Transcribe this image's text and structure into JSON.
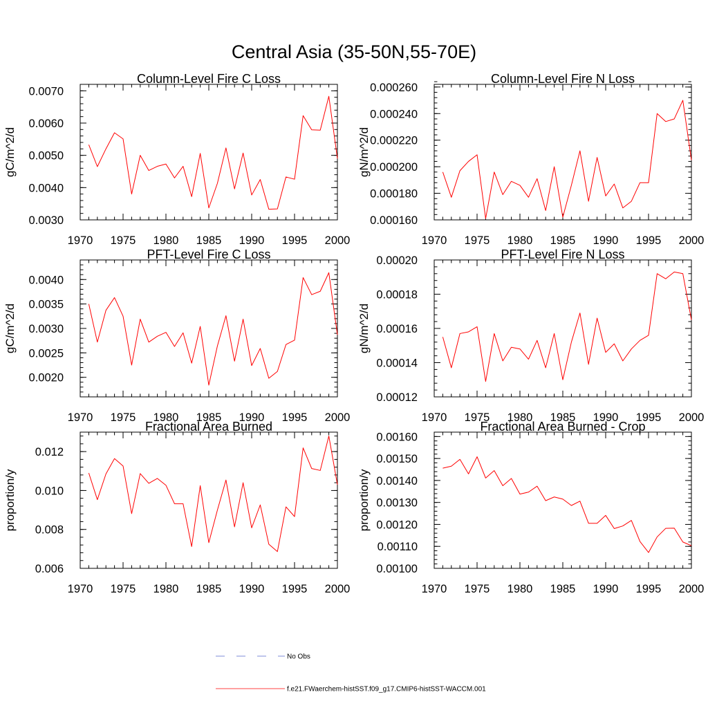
{
  "title": "Central Asia (35-50N,55-70E)",
  "legend": [
    {
      "label": "No Obs",
      "color": "#5566cc",
      "style": "dashed"
    },
    {
      "label": "f.e21.FWaerchem-histSST.f09_g17.CMIP6-histSST-WACCM.001",
      "color": "#ff0000",
      "style": "solid"
    }
  ],
  "chart_data": [
    {
      "type": "line",
      "title": "Column-Level Fire C Loss",
      "ylabel": "gC/m^2/d",
      "xlim": [
        1970,
        2000
      ],
      "ylim": [
        0.003,
        0.0072
      ],
      "x_ticks": [
        "1970",
        "1975",
        "1980",
        "1985",
        "1990",
        "1995",
        "2000"
      ],
      "y_ticks": [
        {
          "value": 0.003,
          "label": "0.0030"
        },
        {
          "value": 0.004,
          "label": "0.0040"
        },
        {
          "value": 0.005,
          "label": "0.0050"
        },
        {
          "value": 0.006,
          "label": "0.0060"
        },
        {
          "value": 0.007,
          "label": "0.0070"
        }
      ],
      "y_minor": 0.0002,
      "series": [
        {
          "color": "#ff0000",
          "x": [
            1971,
            1972,
            1973,
            1974,
            1975,
            1976,
            1977,
            1978,
            1979,
            1980,
            1981,
            1982,
            1983,
            1984,
            1985,
            1986,
            1987,
            1988,
            1989,
            1990,
            1991,
            1992,
            1993,
            1994,
            1995,
            1996,
            1997,
            1998,
            1999,
            2000
          ],
          "values": [
            0.00533,
            0.00465,
            0.0052,
            0.0057,
            0.00551,
            0.0038,
            0.005,
            0.00453,
            0.00466,
            0.00473,
            0.0043,
            0.00466,
            0.00372,
            0.00506,
            0.00337,
            0.00413,
            0.00523,
            0.00396,
            0.00507,
            0.00377,
            0.00425,
            0.00333,
            0.00334,
            0.00433,
            0.00426,
            0.00623,
            0.00579,
            0.00578,
            0.00683,
            0.0049
          ]
        }
      ]
    },
    {
      "type": "line",
      "title": "Column-Level Fire N Loss",
      "ylabel": "gN/m^2/d",
      "xlim": [
        1970,
        2000
      ],
      "ylim": [
        0.00016,
        0.000262
      ],
      "x_ticks": [
        "1970",
        "1975",
        "1980",
        "1985",
        "1990",
        "1995",
        "2000"
      ],
      "y_ticks": [
        {
          "value": 0.00016,
          "label": "0.000160"
        },
        {
          "value": 0.00018,
          "label": "0.000180"
        },
        {
          "value": 0.0002,
          "label": "0.000200"
        },
        {
          "value": 0.00022,
          "label": "0.000220"
        },
        {
          "value": 0.00024,
          "label": "0.000240"
        },
        {
          "value": 0.00026,
          "label": "0.000260"
        }
      ],
      "y_minor": 4e-06,
      "series": [
        {
          "color": "#ff0000",
          "x": [
            1971,
            1972,
            1973,
            1974,
            1975,
            1976,
            1977,
            1978,
            1979,
            1980,
            1981,
            1982,
            1983,
            1984,
            1985,
            1986,
            1987,
            1988,
            1989,
            1990,
            1991,
            1992,
            1993,
            1994,
            1995,
            1996,
            1997,
            1998,
            1999,
            2000
          ],
          "values": [
            0.000196,
            0.000177,
            0.000197,
            0.000204,
            0.000209,
            0.000161,
            0.000196,
            0.000179,
            0.000189,
            0.000186,
            0.000177,
            0.000191,
            0.000167,
            0.0002,
            0.000162,
            0.000186,
            0.000212,
            0.000174,
            0.000207,
            0.000178,
            0.000187,
            0.000169,
            0.000174,
            0.000188,
            0.000188,
            0.00024,
            0.000234,
            0.000236,
            0.00025,
            0.000205
          ]
        }
      ]
    },
    {
      "type": "line",
      "title": "PFT-Level Fire C Loss",
      "ylabel": "gC/m^2/d",
      "xlim": [
        1970,
        2000
      ],
      "ylim": [
        0.0016,
        0.0044
      ],
      "x_ticks": [
        "1970",
        "1975",
        "1980",
        "1985",
        "1990",
        "1995",
        "2000"
      ],
      "y_ticks": [
        {
          "value": 0.002,
          "label": "0.0020"
        },
        {
          "value": 0.0025,
          "label": "0.0025"
        },
        {
          "value": 0.003,
          "label": "0.0030"
        },
        {
          "value": 0.0035,
          "label": "0.0035"
        },
        {
          "value": 0.004,
          "label": "0.0040"
        }
      ],
      "y_minor": 0.0001,
      "series": [
        {
          "color": "#ff0000",
          "x": [
            1971,
            1972,
            1973,
            1974,
            1975,
            1976,
            1977,
            1978,
            1979,
            1980,
            1981,
            1982,
            1983,
            1984,
            1985,
            1986,
            1987,
            1988,
            1989,
            1990,
            1991,
            1992,
            1993,
            1994,
            1995,
            1996,
            1997,
            1998,
            1999,
            2000
          ],
          "values": [
            0.0035,
            0.00272,
            0.00337,
            0.00363,
            0.00325,
            0.00225,
            0.00319,
            0.00272,
            0.00284,
            0.00292,
            0.00263,
            0.00291,
            0.00229,
            0.00304,
            0.00184,
            0.00264,
            0.00326,
            0.00233,
            0.00319,
            0.00224,
            0.00259,
            0.00198,
            0.00212,
            0.00267,
            0.00276,
            0.00404,
            0.00369,
            0.00376,
            0.00414,
            0.00287
          ]
        }
      ]
    },
    {
      "type": "line",
      "title": "PFT-Level Fire N Loss",
      "ylabel": "gN/m^2/d",
      "xlim": [
        1970,
        2000
      ],
      "ylim": [
        0.00012,
        0.0002
      ],
      "x_ticks": [
        "1970",
        "1975",
        "1980",
        "1985",
        "1990",
        "1995",
        "2000"
      ],
      "y_ticks": [
        {
          "value": 0.00012,
          "label": "0.00012"
        },
        {
          "value": 0.00014,
          "label": "0.00014"
        },
        {
          "value": 0.00016,
          "label": "0.00016"
        },
        {
          "value": 0.00018,
          "label": "0.00018"
        },
        {
          "value": 0.0002,
          "label": "0.00020"
        }
      ],
      "y_minor": 4e-06,
      "series": [
        {
          "color": "#ff0000",
          "x": [
            1971,
            1972,
            1973,
            1974,
            1975,
            1976,
            1977,
            1978,
            1979,
            1980,
            1981,
            1982,
            1983,
            1984,
            1985,
            1986,
            1987,
            1988,
            1989,
            1990,
            1991,
            1992,
            1993,
            1994,
            1995,
            1996,
            1997,
            1998,
            1999,
            2000
          ],
          "values": [
            0.000155,
            0.000137,
            0.000157,
            0.000158,
            0.000161,
            0.000129,
            0.000157,
            0.000141,
            0.000149,
            0.000148,
            0.000142,
            0.000153,
            0.000137,
            0.000157,
            0.00013,
            0.000152,
            0.000169,
            0.000139,
            0.000166,
            0.000146,
            0.000151,
            0.000141,
            0.000148,
            0.000153,
            0.000156,
            0.000192,
            0.000189,
            0.000193,
            0.000192,
            0.000165
          ]
        }
      ]
    },
    {
      "type": "line",
      "title": "Fractional Area Burned",
      "ylabel": "proportion/y",
      "xlim": [
        1970,
        2000
      ],
      "ylim": [
        0.006,
        0.013
      ],
      "x_ticks": [
        "1970",
        "1975",
        "1980",
        "1985",
        "1990",
        "1995",
        "2000"
      ],
      "y_ticks": [
        {
          "value": 0.006,
          "label": "0.006"
        },
        {
          "value": 0.008,
          "label": "0.008"
        },
        {
          "value": 0.01,
          "label": "0.010"
        },
        {
          "value": 0.012,
          "label": "0.012"
        }
      ],
      "y_minor": 0.0004,
      "series": [
        {
          "color": "#ff0000",
          "x": [
            1971,
            1972,
            1973,
            1974,
            1975,
            1976,
            1977,
            1978,
            1979,
            1980,
            1981,
            1982,
            1983,
            1984,
            1985,
            1986,
            1987,
            1988,
            1989,
            1990,
            1991,
            1992,
            1993,
            1994,
            1995,
            1996,
            1997,
            1998,
            1999,
            2000
          ],
          "values": [
            0.0109,
            0.00953,
            0.01085,
            0.01164,
            0.01126,
            0.00881,
            0.01087,
            0.01037,
            0.01062,
            0.01027,
            0.00932,
            0.00932,
            0.00712,
            0.01025,
            0.00732,
            0.00899,
            0.01054,
            0.00813,
            0.0104,
            0.00808,
            0.00926,
            0.00724,
            0.00686,
            0.00916,
            0.00866,
            0.01219,
            0.01113,
            0.01103,
            0.0128,
            0.0103
          ]
        }
      ]
    },
    {
      "type": "line",
      "title": "Fractional Area Burned - Crop",
      "ylabel": "proportion/y",
      "xlim": [
        1970,
        2000
      ],
      "ylim": [
        0.001,
        0.00162
      ],
      "x_ticks": [
        "1970",
        "1975",
        "1980",
        "1985",
        "1990",
        "1995",
        "2000"
      ],
      "y_ticks": [
        {
          "value": 0.001,
          "label": "0.00100"
        },
        {
          "value": 0.0011,
          "label": "0.00110"
        },
        {
          "value": 0.0012,
          "label": "0.00120"
        },
        {
          "value": 0.0013,
          "label": "0.00130"
        },
        {
          "value": 0.0014,
          "label": "0.00140"
        },
        {
          "value": 0.0015,
          "label": "0.00150"
        },
        {
          "value": 0.0016,
          "label": "0.00160"
        }
      ],
      "y_minor": 2e-05,
      "series": [
        {
          "color": "#ff0000",
          "x": [
            1971,
            1972,
            1973,
            1974,
            1975,
            1976,
            1977,
            1978,
            1979,
            1980,
            1981,
            1982,
            1983,
            1984,
            1985,
            1986,
            1987,
            1988,
            1989,
            1990,
            1991,
            1992,
            1993,
            1994,
            1995,
            1996,
            1997,
            1998,
            1999,
            2000
          ],
          "values": [
            0.001456,
            0.001465,
            0.001496,
            0.00143,
            0.001508,
            0.001411,
            0.001445,
            0.001376,
            0.001409,
            0.001338,
            0.001347,
            0.001374,
            0.001308,
            0.001325,
            0.001315,
            0.001286,
            0.001306,
            0.001205,
            0.001205,
            0.001241,
            0.001181,
            0.001193,
            0.001218,
            0.001122,
            0.001072,
            0.001143,
            0.001182,
            0.001183,
            0.00112,
            0.001103
          ]
        }
      ]
    }
  ]
}
